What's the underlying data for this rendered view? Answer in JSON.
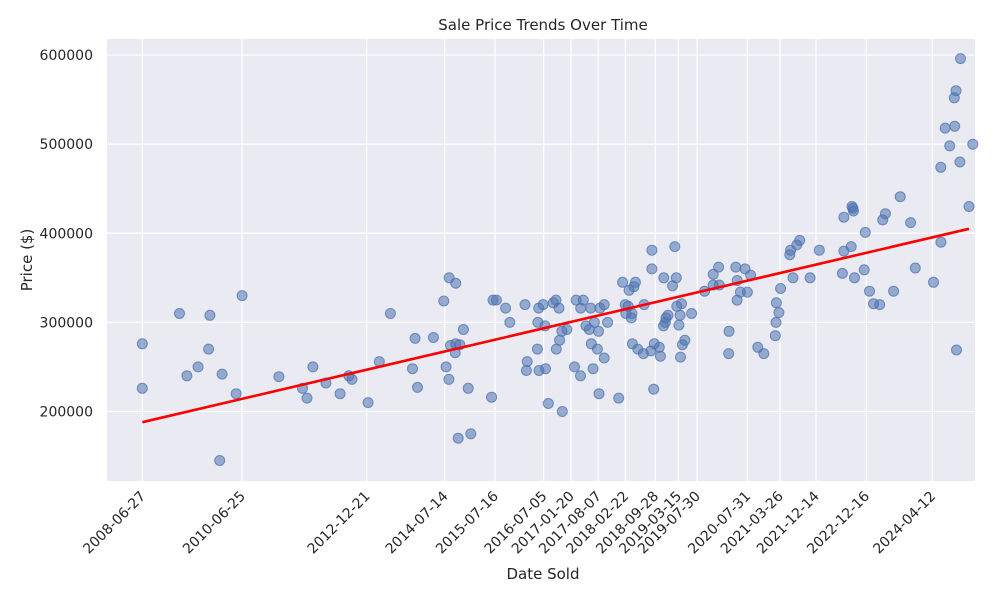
{
  "chart_data": {
    "type": "scatter",
    "title": "Sale Price Trends Over Time",
    "xlabel": "Date Sold",
    "ylabel": "Price ($)",
    "x_tick_labels": [
      "2008-06-27",
      "2010-06-25",
      "2012-12-21",
      "2014-07-14",
      "2015-07-16",
      "2016-07-05",
      "2017-01-20",
      "2017-08-07",
      "2018-02-22",
      "2018-09-28",
      "2019-03-15",
      "2019-07-30",
      "2020-07-31",
      "2021-03-26",
      "2021-12-14",
      "2022-12-16",
      "2024-04-12"
    ],
    "y_tick_labels": [
      "200000",
      "300000",
      "400000",
      "500000",
      "600000"
    ],
    "y_ticks": [
      200000,
      300000,
      400000,
      500000,
      600000
    ],
    "ylim": [
      122000,
      618000
    ],
    "xlim": [
      "2007-10-13",
      "2025-02-17"
    ],
    "grid": true,
    "colors": {
      "background": "#eaeaf2",
      "points": "#4c72b0",
      "trend": "#ff0000",
      "grid": "#ffffff"
    },
    "series": [
      {
        "points": [
          [
            "2008-06-27",
            276000
          ],
          [
            "2008-06-27",
            226000
          ],
          [
            "2009-03-25",
            310000
          ],
          [
            "2009-05-18",
            240000
          ],
          [
            "2009-08-08",
            250000
          ],
          [
            "2009-10-24",
            270000
          ],
          [
            "2009-11-02",
            308000
          ],
          [
            "2010-01-13",
            145000
          ],
          [
            "2010-01-30",
            242000
          ],
          [
            "2010-05-13",
            220000
          ],
          [
            "2010-06-25",
            330000
          ],
          [
            "2011-03-21",
            239000
          ],
          [
            "2011-09-09",
            226000
          ],
          [
            "2011-10-12",
            215000
          ],
          [
            "2011-11-24",
            250000
          ],
          [
            "2012-02-27",
            232000
          ],
          [
            "2012-06-10",
            220000
          ],
          [
            "2012-08-12",
            240000
          ],
          [
            "2012-09-05",
            236000
          ],
          [
            "2012-12-31",
            210000
          ],
          [
            "2013-03-23",
            256000
          ],
          [
            "2013-06-12",
            310000
          ],
          [
            "2013-11-20",
            248000
          ],
          [
            "2013-12-09",
            282000
          ],
          [
            "2013-12-27",
            227000
          ],
          [
            "2014-04-22",
            283000
          ],
          [
            "2014-07-07",
            324000
          ],
          [
            "2014-07-24",
            250000
          ],
          [
            "2014-08-13",
            236000
          ],
          [
            "2014-08-15",
            350000
          ],
          [
            "2014-08-25",
            274000
          ],
          [
            "2014-09-28",
            266000
          ],
          [
            "2014-10-02",
            276000
          ],
          [
            "2014-10-02",
            344000
          ],
          [
            "2014-10-20",
            170000
          ],
          [
            "2014-11-01",
            275000
          ],
          [
            "2014-11-27",
            292000
          ],
          [
            "2015-01-01",
            226000
          ],
          [
            "2015-01-20",
            175000
          ],
          [
            "2015-06-21",
            216000
          ],
          [
            "2015-07-01",
            325000
          ],
          [
            "2015-07-26",
            325000
          ],
          [
            "2015-10-01",
            316000
          ],
          [
            "2015-11-01",
            300000
          ],
          [
            "2016-02-20",
            320000
          ],
          [
            "2016-03-01",
            246000
          ],
          [
            "2016-03-07",
            256000
          ],
          [
            "2016-05-20",
            270000
          ],
          [
            "2016-05-24",
            300000
          ],
          [
            "2016-05-30",
            316000
          ],
          [
            "2016-06-01",
            246000
          ],
          [
            "2016-07-01",
            320000
          ],
          [
            "2016-07-15",
            296000
          ],
          [
            "2016-07-18",
            248000
          ],
          [
            "2016-08-08",
            209000
          ],
          [
            "2016-09-13",
            322000
          ],
          [
            "2016-10-03",
            325000
          ],
          [
            "2016-10-05",
            270000
          ],
          [
            "2016-10-25",
            316000
          ],
          [
            "2016-10-29",
            280000
          ],
          [
            "2016-11-15",
            290000
          ],
          [
            "2016-11-18",
            200000
          ],
          [
            "2016-12-21",
            292000
          ],
          [
            "2017-02-15",
            250000
          ],
          [
            "2017-02-27",
            325000
          ],
          [
            "2017-03-31",
            240000
          ],
          [
            "2017-04-01",
            316000
          ],
          [
            "2017-04-20",
            325000
          ],
          [
            "2017-05-10",
            296000
          ],
          [
            "2017-06-03",
            292000
          ],
          [
            "2017-06-13",
            316000
          ],
          [
            "2017-06-18",
            276000
          ],
          [
            "2017-07-01",
            248000
          ],
          [
            "2017-07-10",
            300000
          ],
          [
            "2017-08-01",
            270000
          ],
          [
            "2017-08-09",
            290000
          ],
          [
            "2017-08-13",
            220000
          ],
          [
            "2017-08-20",
            316000
          ],
          [
            "2017-09-20",
            260000
          ],
          [
            "2017-09-20",
            320000
          ],
          [
            "2017-10-15",
            300000
          ],
          [
            "2018-01-04",
            215000
          ],
          [
            "2018-02-01",
            345000
          ],
          [
            "2018-02-20",
            320000
          ],
          [
            "2018-02-25",
            310000
          ],
          [
            "2018-03-14",
            318000
          ],
          [
            "2018-03-21",
            336000
          ],
          [
            "2018-04-06",
            305000
          ],
          [
            "2018-04-10",
            310000
          ],
          [
            "2018-04-14",
            276000
          ],
          [
            "2018-04-25",
            340000
          ],
          [
            "2018-05-06",
            345000
          ],
          [
            "2018-05-23",
            270000
          ],
          [
            "2018-07-03",
            265000
          ],
          [
            "2018-07-08",
            320000
          ],
          [
            "2018-08-27",
            268000
          ],
          [
            "2018-09-03",
            381000
          ],
          [
            "2018-09-03",
            360000
          ],
          [
            "2018-09-16",
            225000
          ],
          [
            "2018-09-21",
            276000
          ],
          [
            "2018-10-27",
            272000
          ],
          [
            "2018-11-04",
            262000
          ],
          [
            "2018-11-27",
            296000
          ],
          [
            "2018-11-29",
            350000
          ],
          [
            "2018-12-10",
            300000
          ],
          [
            "2018-12-15",
            305000
          ],
          [
            "2018-12-30",
            308000
          ],
          [
            "2019-02-01",
            341000
          ],
          [
            "2019-02-17",
            385000
          ],
          [
            "2019-02-28",
            350000
          ],
          [
            "2019-03-04",
            318000
          ],
          [
            "2019-03-19",
            297000
          ],
          [
            "2019-03-28",
            308000
          ],
          [
            "2019-03-31",
            261000
          ],
          [
            "2019-04-07",
            321000
          ],
          [
            "2019-04-14",
            275000
          ],
          [
            "2019-05-01",
            280000
          ],
          [
            "2019-06-20",
            310000
          ],
          [
            "2019-09-23",
            335000
          ],
          [
            "2019-11-25",
            342000
          ],
          [
            "2019-11-25",
            354000
          ],
          [
            "2020-01-03",
            362000
          ],
          [
            "2020-01-08",
            342000
          ],
          [
            "2020-03-17",
            265000
          ],
          [
            "2020-03-19",
            290000
          ],
          [
            "2020-05-08",
            362000
          ],
          [
            "2020-05-17",
            325000
          ],
          [
            "2020-05-18",
            347000
          ],
          [
            "2020-06-10",
            334000
          ],
          [
            "2020-07-14",
            360000
          ],
          [
            "2020-07-31",
            334000
          ],
          [
            "2020-08-24",
            353000
          ],
          [
            "2020-10-15",
            272000
          ],
          [
            "2020-11-28",
            265000
          ],
          [
            "2021-02-20",
            285000
          ],
          [
            "2021-02-25",
            300000
          ],
          [
            "2021-02-28",
            322000
          ],
          [
            "2021-03-18",
            311000
          ],
          [
            "2021-03-31",
            338000
          ],
          [
            "2021-06-06",
            376000
          ],
          [
            "2021-06-12",
            381000
          ],
          [
            "2021-06-29",
            350000
          ],
          [
            "2021-07-27",
            387000
          ],
          [
            "2021-08-17",
            392000
          ],
          [
            "2021-11-01",
            350000
          ],
          [
            "2022-01-07",
            381000
          ],
          [
            "2022-06-25",
            355000
          ],
          [
            "2022-07-06",
            418000
          ],
          [
            "2022-07-06",
            380000
          ],
          [
            "2022-08-28",
            385000
          ],
          [
            "2022-09-03",
            430000
          ],
          [
            "2022-09-10",
            428000
          ],
          [
            "2022-09-13",
            425000
          ],
          [
            "2022-09-21",
            350000
          ],
          [
            "2022-12-01",
            359000
          ],
          [
            "2022-12-09",
            401000
          ],
          [
            "2023-01-09",
            335000
          ],
          [
            "2023-02-08",
            321000
          ],
          [
            "2023-03-24",
            320000
          ],
          [
            "2023-04-15",
            415000
          ],
          [
            "2023-05-05",
            422000
          ],
          [
            "2023-07-04",
            335000
          ],
          [
            "2023-08-21",
            441000
          ],
          [
            "2023-11-05",
            412000
          ],
          [
            "2023-12-09",
            361000
          ],
          [
            "2024-04-20",
            345000
          ],
          [
            "2024-06-12",
            474000
          ],
          [
            "2024-06-13",
            390000
          ],
          [
            "2024-07-14",
            518000
          ],
          [
            "2024-08-16",
            498000
          ],
          [
            "2024-09-19",
            552000
          ],
          [
            "2024-09-22",
            520000
          ],
          [
            "2024-10-01",
            560000
          ],
          [
            "2024-10-05",
            269000
          ],
          [
            "2024-10-30",
            480000
          ],
          [
            "2024-11-03",
            596000
          ],
          [
            "2025-01-04",
            430000
          ],
          [
            "2025-02-01",
            500000
          ]
        ]
      }
    ],
    "trend_line": [
      [
        "2008-06-27",
        188000
      ],
      [
        "2025-01-04",
        405000
      ]
    ]
  }
}
